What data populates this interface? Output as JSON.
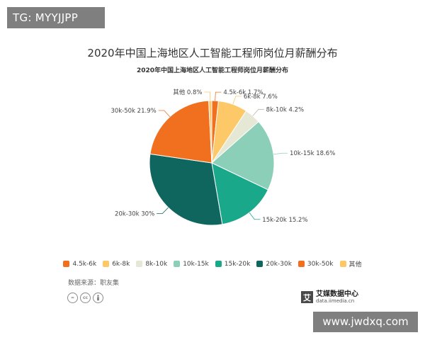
{
  "watermarks": {
    "top_left": "TG: MYYJJPP",
    "bottom_right": "www.jwdxq.com"
  },
  "page_title": "2020年中国上海地区人工智能工程师岗位月薪酬分布",
  "source_label": "数据来源：职友集",
  "brand": {
    "name": "艾媒数据中心",
    "url": "data.iimedia.cn",
    "mark": "艾"
  },
  "chart_data": {
    "type": "pie",
    "title": "2020年中国上海地区人工智能工程师岗位月薪酬分布",
    "legend_position": "bottom",
    "slices": [
      {
        "label": "4.5k-6k",
        "value": 1.7,
        "display": "4.5k-6k 1.7%",
        "color": "#f07020"
      },
      {
        "label": "6k-8k",
        "value": 7.6,
        "display": "6k-8k 7.6%",
        "color": "#fcc868"
      },
      {
        "label": "8k-10k",
        "value": 4.2,
        "display": "8k-10k 4.2%",
        "color": "#e4e8d4"
      },
      {
        "label": "10k-15k",
        "value": 18.6,
        "display": "10k-15k 18.6%",
        "color": "#8ccfb8"
      },
      {
        "label": "15k-20k",
        "value": 15.2,
        "display": "15k-20k 15.2%",
        "color": "#1aa88a"
      },
      {
        "label": "20k-30k",
        "value": 30,
        "display": "20k-30k 30%",
        "color": "#0f665e"
      },
      {
        "label": "30k-50k",
        "value": 21.9,
        "display": "30k-50k 21.9%",
        "color": "#f07020"
      },
      {
        "label": "其他",
        "value": 0.8,
        "display": "其他 0.8%",
        "color": "#fcc868"
      }
    ]
  }
}
